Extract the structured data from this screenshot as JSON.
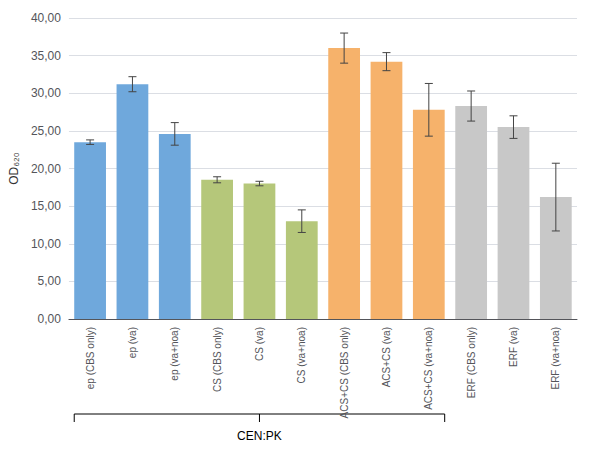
{
  "chart_data": {
    "type": "bar",
    "categories": [
      "ep (CBS only)",
      "ep (va)",
      "ep (va+noa)",
      "CS (CBS only)",
      "CS (va)",
      "CS (va+noa)",
      "ACS+CS (CBS only)",
      "ACS+CS (va)",
      "ACS+CS (va+noa)",
      "ERF (CBS only)",
      "ERF (va)",
      "ERF (va+noa)"
    ],
    "values": [
      23.5,
      31.2,
      24.6,
      18.5,
      18.0,
      13.0,
      36.0,
      34.2,
      27.8,
      28.3,
      25.5,
      16.2
    ],
    "errors": [
      0.3,
      1.0,
      1.5,
      0.4,
      0.3,
      1.5,
      2.0,
      1.2,
      3.5,
      2.0,
      1.5,
      4.5
    ],
    "colors": [
      "#6FA8DC",
      "#6FA8DC",
      "#6FA8DC",
      "#B5C77A",
      "#B5C77A",
      "#B5C77A",
      "#F6B26B",
      "#F6B26B",
      "#F6B26B",
      "#C8C8C8",
      "#C8C8C8",
      "#C8C8C8"
    ],
    "ylabel": "OD₆₂₀",
    "ylim": [
      0,
      40
    ],
    "yticks": [
      {
        "value": 0,
        "label": "0,00"
      },
      {
        "value": 5,
        "label": "5,00"
      },
      {
        "value": 10,
        "label": "10,00"
      },
      {
        "value": 15,
        "label": "15,00"
      },
      {
        "value": 20,
        "label": "20,00"
      },
      {
        "value": 25,
        "label": "25,00"
      },
      {
        "value": 30,
        "label": "30,00"
      },
      {
        "value": 35,
        "label": "35,00"
      },
      {
        "value": 40,
        "label": "40,00"
      }
    ],
    "grid": true,
    "annotations": [
      {
        "text": "CEN:PK",
        "categories": [
          "ep (CBS only)",
          "ACS+CS (va+noa)"
        ]
      }
    ]
  }
}
